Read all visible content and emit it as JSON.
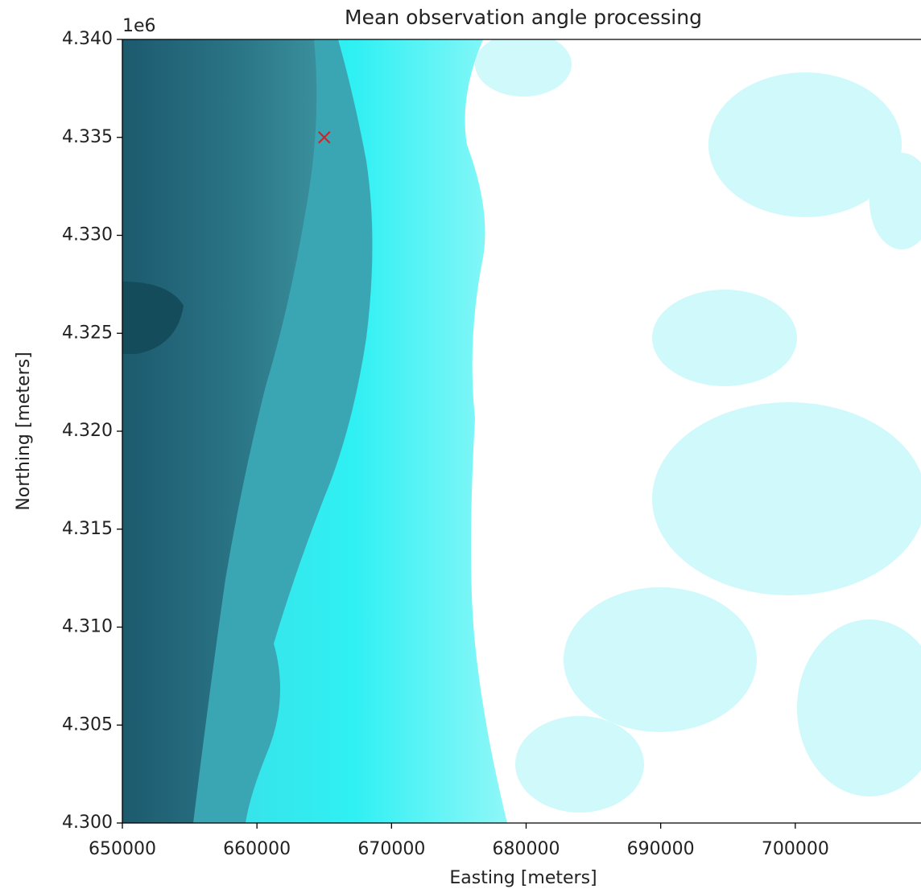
{
  "chart_data": {
    "type": "scatter",
    "title": "Mean observation angle processing",
    "xlabel": "Easting [meters]",
    "ylabel": "Northing [meters]",
    "y_offset_text": "1e6",
    "xlim": [
      650000,
      710000
    ],
    "ylim": [
      4300000,
      4340000
    ],
    "xticks": [
      650000,
      660000,
      670000,
      680000,
      690000,
      700000
    ],
    "yticks": [
      {
        "value": 4300000,
        "label": "4.300"
      },
      {
        "value": 4305000,
        "label": "4.305"
      },
      {
        "value": 4310000,
        "label": "4.310"
      },
      {
        "value": 4315000,
        "label": "4.315"
      },
      {
        "value": 4320000,
        "label": "4.320"
      },
      {
        "value": 4325000,
        "label": "4.325"
      },
      {
        "value": 4330000,
        "label": "4.330"
      },
      {
        "value": 4335000,
        "label": "4.335"
      },
      {
        "value": 4340000,
        "label": "4.340"
      }
    ],
    "series": [
      {
        "color": "#e41a1c",
        "marker": "x",
        "x": [
          665000
        ],
        "values": [
          4335000
        ]
      }
    ],
    "grid": false
  }
}
